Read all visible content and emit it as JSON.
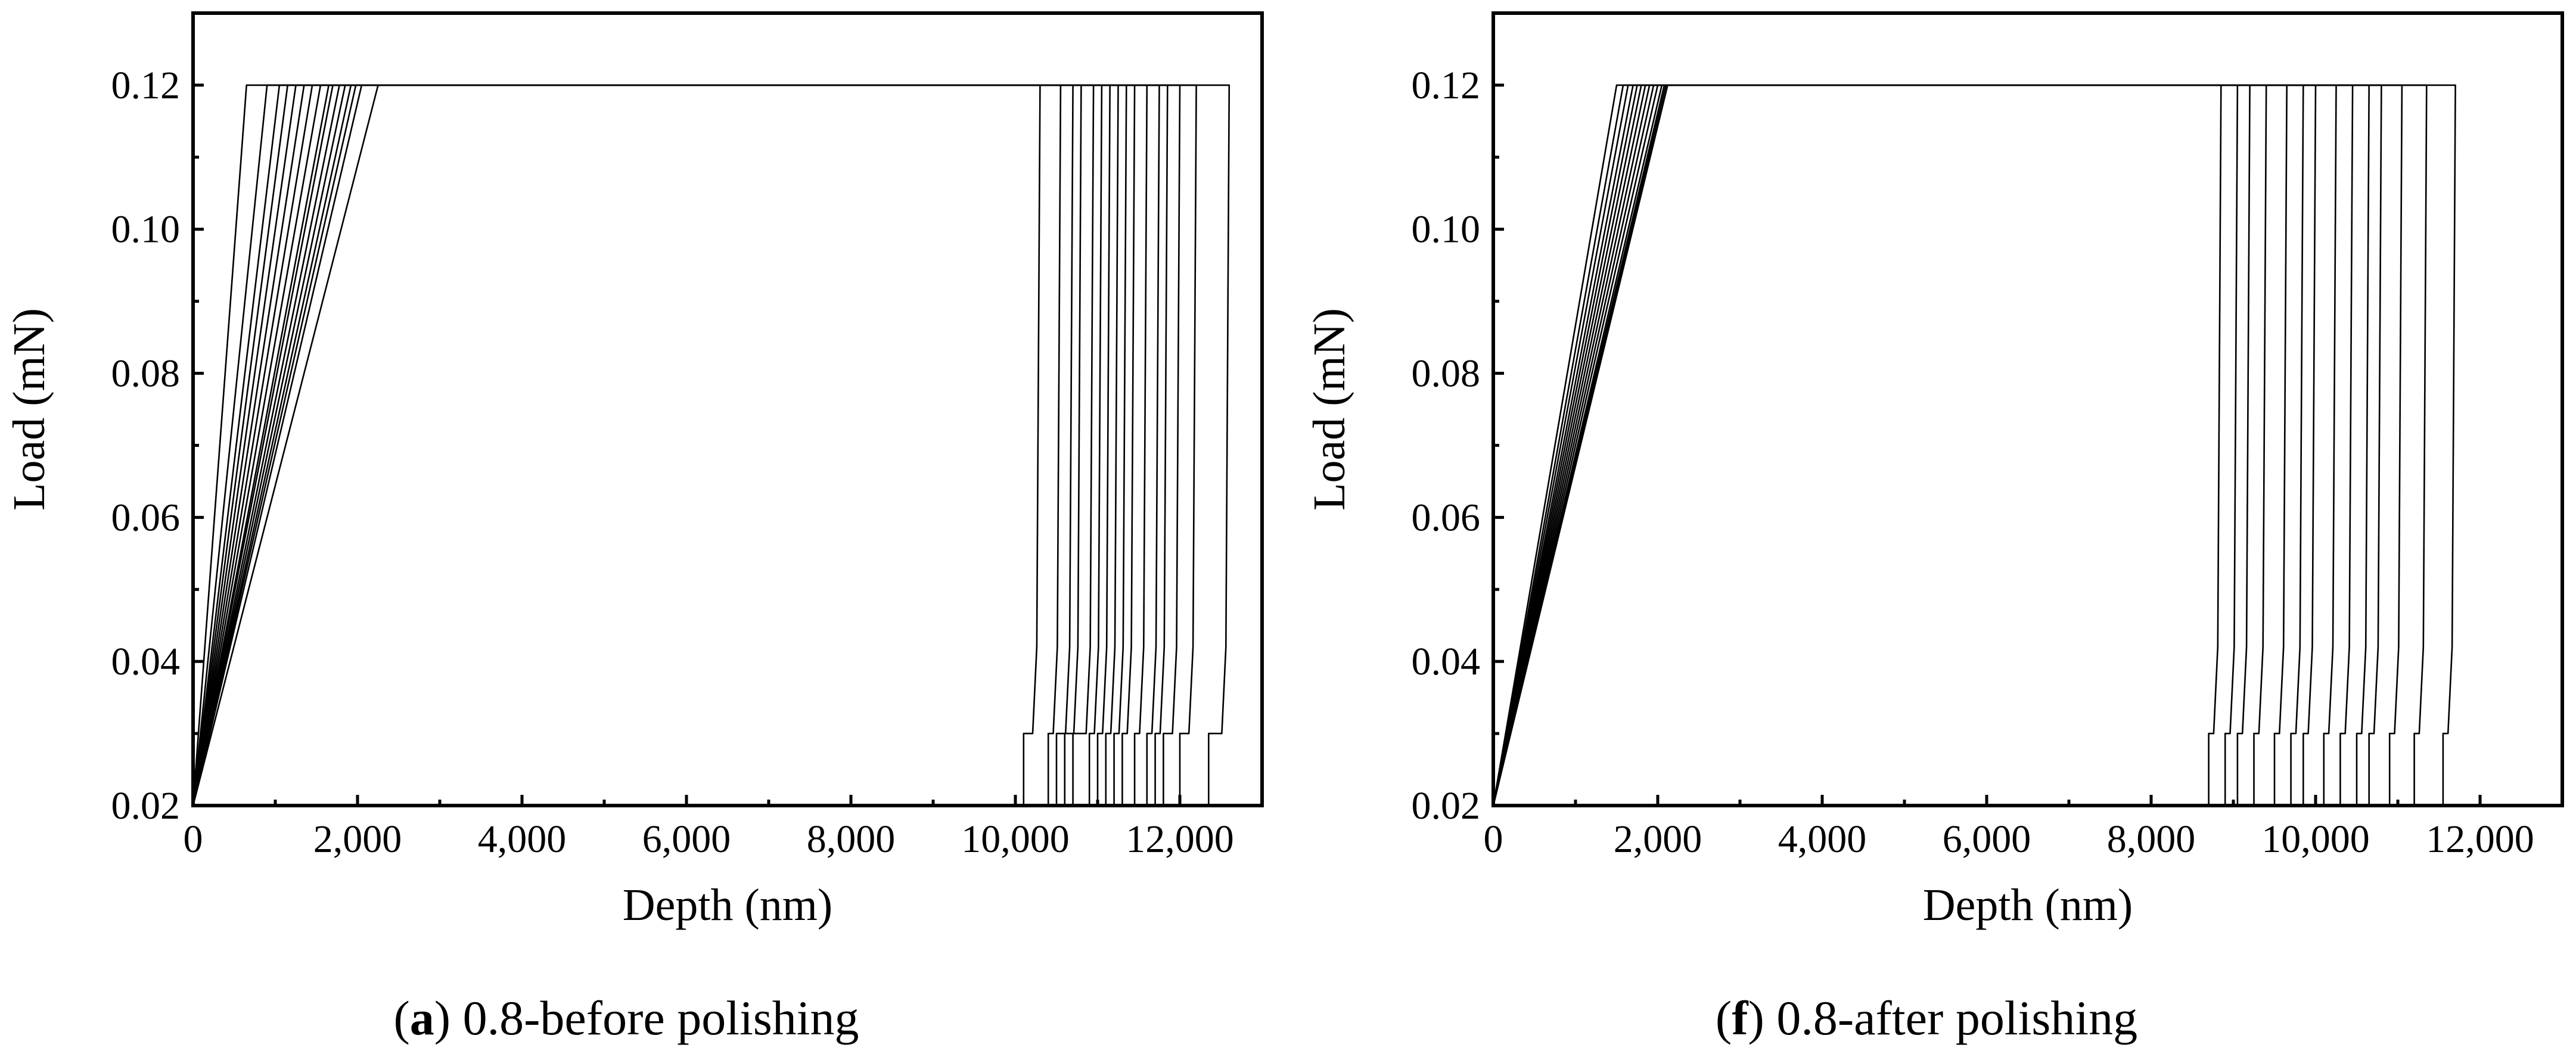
{
  "chart_data": [
    {
      "id": "a",
      "type": "line",
      "title": "",
      "xlabel": "Depth (nm)",
      "ylabel": "Load (mN)",
      "xlim": [
        0,
        13000
      ],
      "ylim": [
        0.02,
        0.13
      ],
      "xticks": [
        0,
        2000,
        4000,
        6000,
        8000,
        10000,
        12000
      ],
      "xtick_labels": [
        "0",
        "2,000",
        "4,000",
        "6,000",
        "8,000",
        "10,000",
        "12,000"
      ],
      "yticks": [
        0.02,
        0.04,
        0.06,
        0.08,
        0.1,
        0.12
      ],
      "ytick_labels": [
        "0.02",
        "0.04",
        "0.06",
        "0.08",
        "0.10",
        "0.12"
      ],
      "grid": false,
      "caption_letter": "a",
      "caption_text": ") 0.8-before polishing",
      "caption_open": "(",
      "hold_load": 0.12,
      "step_load": 0.03,
      "series": [
        {
          "load_end": 650,
          "hold_end": 10300,
          "step_depth": 10100
        },
        {
          "load_end": 900,
          "hold_end": 10550,
          "step_depth": 10400
        },
        {
          "load_end": 1050,
          "hold_end": 10700,
          "step_depth": 10500
        },
        {
          "load_end": 1150,
          "hold_end": 10800,
          "step_depth": 10600
        },
        {
          "load_end": 1250,
          "hold_end": 10950,
          "step_depth": 10700
        },
        {
          "load_end": 1350,
          "hold_end": 11050,
          "step_depth": 10900
        },
        {
          "load_end": 1450,
          "hold_end": 11150,
          "step_depth": 11000
        },
        {
          "load_end": 1550,
          "hold_end": 11250,
          "step_depth": 11100
        },
        {
          "load_end": 1650,
          "hold_end": 11350,
          "step_depth": 11200
        },
        {
          "load_end": 1700,
          "hold_end": 11450,
          "step_depth": 11300
        },
        {
          "load_end": 1780,
          "hold_end": 11600,
          "step_depth": 11450
        },
        {
          "load_end": 1850,
          "hold_end": 11750,
          "step_depth": 11600
        },
        {
          "load_end": 1920,
          "hold_end": 11850,
          "step_depth": 11700
        },
        {
          "load_end": 1980,
          "hold_end": 12000,
          "step_depth": 11800
        },
        {
          "load_end": 2050,
          "hold_end": 12200,
          "step_depth": 12000
        },
        {
          "load_end": 2250,
          "hold_end": 12600,
          "step_depth": 12350
        }
      ]
    },
    {
      "id": "f",
      "type": "line",
      "title": "",
      "xlabel": "Depth (nm)",
      "ylabel": "Load (mN)",
      "xlim": [
        0,
        13000
      ],
      "ylim": [
        0.02,
        0.13
      ],
      "xticks": [
        0,
        2000,
        4000,
        6000,
        8000,
        10000,
        12000
      ],
      "xtick_labels": [
        "0",
        "2,000",
        "4,000",
        "6,000",
        "8,000",
        "10,000",
        "12,000"
      ],
      "yticks": [
        0.02,
        0.04,
        0.06,
        0.08,
        0.1,
        0.12
      ],
      "ytick_labels": [
        "0.02",
        "0.04",
        "0.06",
        "0.08",
        "0.10",
        "0.12"
      ],
      "grid": false,
      "caption_letter": "f",
      "caption_text": ") 0.8-after polishing",
      "caption_open": "(",
      "hold_load": 0.12,
      "step_load": 0.03,
      "series": [
        {
          "load_end": 1500,
          "hold_end": 8850,
          "step_depth": 8700
        },
        {
          "load_end": 1580,
          "hold_end": 9050,
          "step_depth": 8900
        },
        {
          "load_end": 1640,
          "hold_end": 9200,
          "step_depth": 9050
        },
        {
          "load_end": 1700,
          "hold_end": 9400,
          "step_depth": 9250
        },
        {
          "load_end": 1750,
          "hold_end": 9650,
          "step_depth": 9500
        },
        {
          "load_end": 1800,
          "hold_end": 9850,
          "step_depth": 9700
        },
        {
          "load_end": 1850,
          "hold_end": 10000,
          "step_depth": 9850
        },
        {
          "load_end": 1900,
          "hold_end": 10250,
          "step_depth": 10100
        },
        {
          "load_end": 1950,
          "hold_end": 10450,
          "step_depth": 10300
        },
        {
          "load_end": 2000,
          "hold_end": 10650,
          "step_depth": 10500
        },
        {
          "load_end": 2050,
          "hold_end": 10800,
          "step_depth": 10650
        },
        {
          "load_end": 2080,
          "hold_end": 11050,
          "step_depth": 10900
        },
        {
          "load_end": 2100,
          "hold_end": 11350,
          "step_depth": 11200
        },
        {
          "load_end": 2120,
          "hold_end": 11700,
          "step_depth": 11550
        }
      ]
    }
  ]
}
